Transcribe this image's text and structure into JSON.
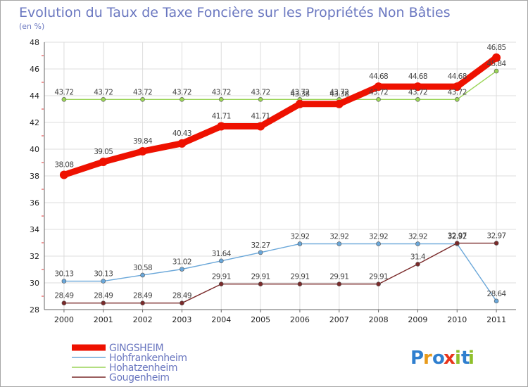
{
  "chart_data": {
    "type": "line",
    "title": "Evolution du Taux de Taxe Foncière sur les Propriétés Non Bâties",
    "ylabel": "(en %)",
    "xlabel": "",
    "ylim": [
      28,
      48
    ],
    "yticks": [
      28,
      30,
      32,
      34,
      36,
      38,
      40,
      42,
      44,
      46,
      48
    ],
    "categories": [
      "2000",
      "2001",
      "2002",
      "2003",
      "2004",
      "2005",
      "2006",
      "2007",
      "2008",
      "2009",
      "2010",
      "2011"
    ],
    "series": [
      {
        "name": "Hohatzenheim",
        "color": "#9ad456",
        "values": [
          43.72,
          43.72,
          43.72,
          43.72,
          43.72,
          43.72,
          43.72,
          43.72,
          43.72,
          43.72,
          43.72,
          45.84
        ],
        "labels": [
          "43.72",
          "43.72",
          "43.72",
          "43.72",
          "43.72",
          "43.72",
          "43.72",
          "43.72",
          "43.72",
          "43.72",
          "43.72",
          "45.84"
        ]
      },
      {
        "name": "Hohfrankenheim",
        "color": "#6aa7d9",
        "values": [
          30.13,
          30.13,
          30.58,
          31.02,
          31.64,
          32.27,
          32.92,
          32.92,
          32.92,
          32.92,
          32.92,
          28.64
        ],
        "labels": [
          "30.13",
          "30.13",
          "30.58",
          "31.02",
          "31.64",
          "32.27",
          "32.92",
          "32.92",
          "32.92",
          "32.92",
          "32.92",
          "28.64"
        ]
      },
      {
        "name": "Gougenheim",
        "color": "#7a2a2a",
        "values": [
          28.49,
          28.49,
          28.49,
          28.49,
          29.91,
          29.91,
          29.91,
          29.91,
          29.91,
          31.4,
          32.97,
          32.97
        ],
        "labels": [
          "28.49",
          "28.49",
          "28.49",
          "28.49",
          "29.91",
          "29.91",
          "29.91",
          "29.91",
          "29.91",
          "31.4",
          "32.97",
          "32.97"
        ]
      },
      {
        "name": "GINGSHEIM",
        "color": "#ee1100",
        "values": [
          38.08,
          39.05,
          39.84,
          40.43,
          41.71,
          41.71,
          43.38,
          43.38,
          44.68,
          44.68,
          44.68,
          46.85
        ],
        "labels": [
          "38.08",
          "39.05",
          "39.84",
          "40.43",
          "41.71",
          "41.71",
          "43.38",
          "43.38",
          "44.68",
          "44.68",
          "44.68",
          "46.85"
        ]
      }
    ],
    "legend": [
      "GINGSHEIM",
      "Hohfrankenheim",
      "Hohatzenheim",
      "Gougenheim"
    ],
    "legend_position": "bottom-left"
  },
  "brand": {
    "letters": [
      "P",
      "r",
      "o",
      "x",
      "i",
      "t",
      "i"
    ],
    "colors": [
      "#2f7fcf",
      "#e89a1a",
      "#2f7fcf",
      "#e8341a",
      "#8fbf2a",
      "#2f7fcf",
      "#8fbf2a"
    ]
  }
}
